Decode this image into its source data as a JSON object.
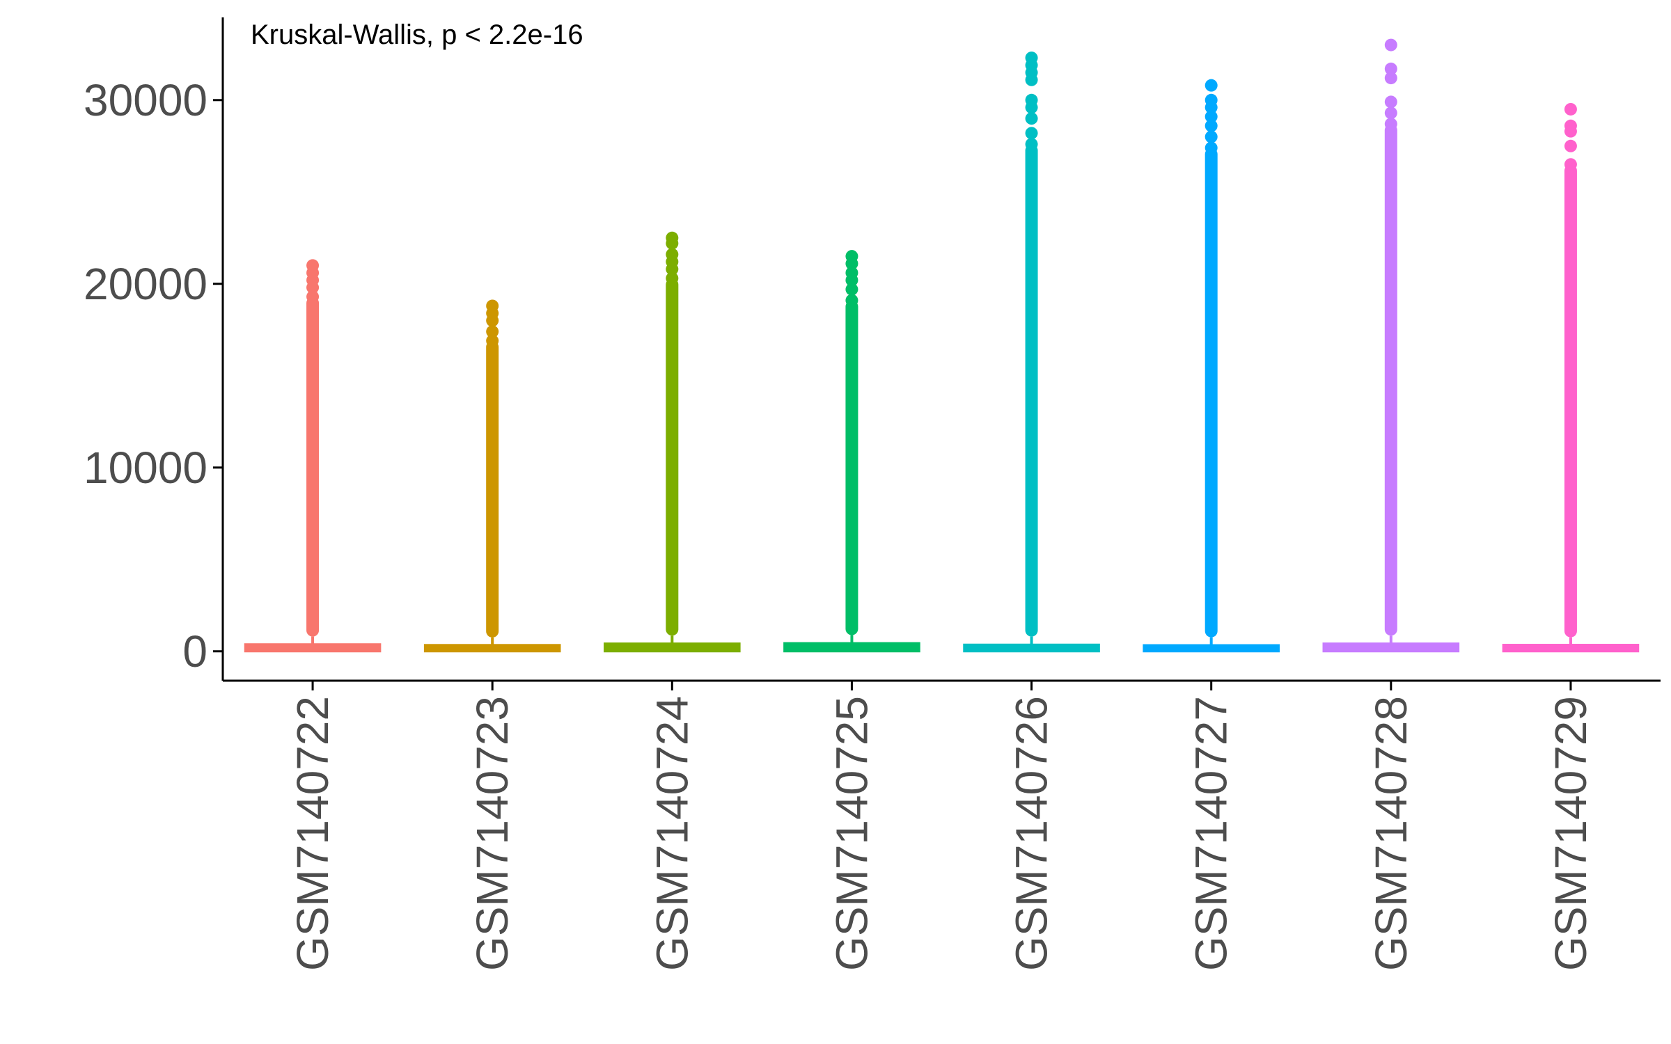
{
  "chart_data": {
    "type": "box",
    "title": "",
    "xlabel": "",
    "ylabel": "",
    "annotation": "Kruskal-Wallis, p < 2.2e-16",
    "ylim": [
      -1600,
      34500
    ],
    "y_ticks": [
      0,
      10000,
      20000,
      30000
    ],
    "y_tick_labels": [
      "0",
      "10000",
      "20000",
      "30000"
    ],
    "grid": false,
    "legend": "none",
    "categories": [
      "GSM7140722",
      "GSM7140723",
      "GSM7140724",
      "GSM7140725",
      "GSM7140726",
      "GSM7140727",
      "GSM7140728",
      "GSM7140729"
    ],
    "series": [
      {
        "category": "GSM7140722",
        "color": "#F8766D",
        "q1": 0,
        "median": 150,
        "q3": 380,
        "whisker_high": 800,
        "outlier_max": 21000,
        "sparse_outliers": [
          21000,
          20600,
          20200,
          19800,
          19300
        ]
      },
      {
        "category": "GSM7140723",
        "color": "#CD9600",
        "q1": 0,
        "median": 120,
        "q3": 340,
        "whisker_high": 750,
        "outlier_max": 18800,
        "sparse_outliers": [
          18800,
          18400,
          18000,
          17400,
          16900
        ]
      },
      {
        "category": "GSM7140724",
        "color": "#7CAE00",
        "q1": 0,
        "median": 170,
        "q3": 420,
        "whisker_high": 850,
        "outlier_max": 22500,
        "sparse_outliers": [
          22500,
          22200,
          21600,
          21200,
          20800,
          20300
        ]
      },
      {
        "category": "GSM7140725",
        "color": "#00BE67",
        "q1": 0,
        "median": 180,
        "q3": 440,
        "whisker_high": 880,
        "outlier_max": 21500,
        "sparse_outliers": [
          21500,
          21100,
          20600,
          20200,
          19700,
          19100
        ]
      },
      {
        "category": "GSM7140726",
        "color": "#00BFC4",
        "q1": 0,
        "median": 130,
        "q3": 360,
        "whisker_high": 800,
        "outlier_max": 32300,
        "sparse_outliers": [
          32300,
          31900,
          31500,
          31100,
          30000,
          29600,
          29000,
          28200,
          27600
        ]
      },
      {
        "category": "GSM7140727",
        "color": "#00A9FF",
        "q1": 0,
        "median": 110,
        "q3": 330,
        "whisker_high": 760,
        "outlier_max": 30800,
        "sparse_outliers": [
          30800,
          30000,
          29600,
          29100,
          28600,
          28000,
          27400
        ]
      },
      {
        "category": "GSM7140728",
        "color": "#C77CFF",
        "q1": 0,
        "median": 160,
        "q3": 420,
        "whisker_high": 850,
        "outlier_max": 33000,
        "sparse_outliers": [
          33000,
          31700,
          31200,
          29900,
          29300,
          28700
        ]
      },
      {
        "category": "GSM7140729",
        "color": "#FF61CC",
        "q1": 0,
        "median": 120,
        "q3": 350,
        "whisker_high": 760,
        "outlier_max": 29500,
        "sparse_outliers": [
          29500,
          28600,
          28300,
          27500,
          26500
        ]
      }
    ]
  }
}
